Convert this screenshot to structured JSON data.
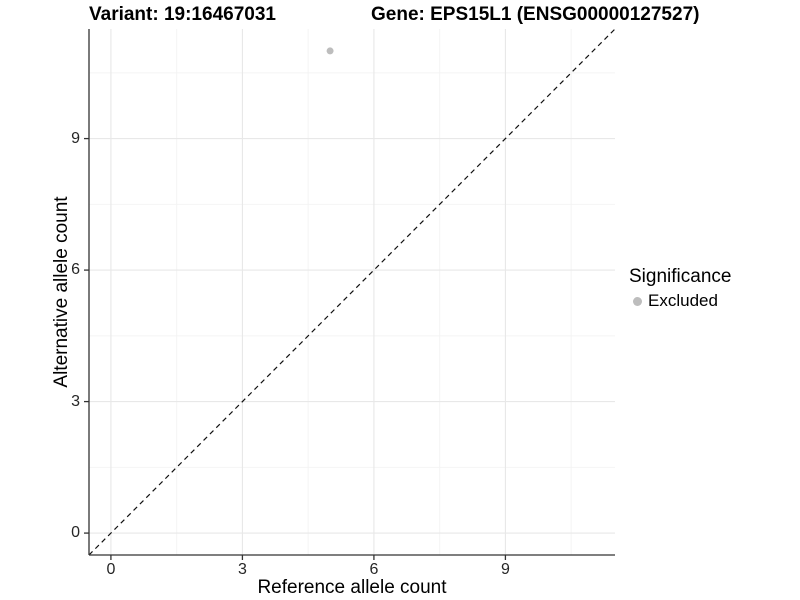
{
  "chart_data": {
    "type": "scatter",
    "title_left": "Variant: 19:16467031",
    "title_right": "Gene: EPS15L1 (ENSG00000127527)",
    "xlabel": "Reference allele count",
    "ylabel": "Alternative allele count",
    "xlim": [
      -0.5,
      11.5
    ],
    "ylim": [
      -0.5,
      11.5
    ],
    "x_major_ticks": [
      0,
      3,
      6,
      9
    ],
    "y_major_ticks": [
      0,
      3,
      6,
      9
    ],
    "x_minor_gridlines": [
      1.5,
      4.5,
      7.5,
      10.5
    ],
    "y_minor_gridlines": [
      1.5,
      4.5,
      7.5,
      10.5
    ],
    "grid": true,
    "series": [
      {
        "name": "Excluded",
        "color": "#bdbdbd",
        "points": [
          {
            "x": 5,
            "y": 11
          }
        ]
      }
    ],
    "reference_line": {
      "type": "identity",
      "style": "dashed",
      "color": "#111111",
      "from": [
        -0.5,
        -0.5
      ],
      "to": [
        11.5,
        11.5
      ]
    },
    "legend": {
      "position": "right",
      "title": "Significance",
      "items": [
        {
          "label": "Excluded",
          "color": "#bdbdbd"
        }
      ]
    },
    "colors": {
      "major_grid": "#e8e8e8",
      "minor_grid": "#f4f4f4",
      "axis_line": "#333333",
      "tick_mark": "#333333",
      "tick_label": "#262626",
      "background": "#ffffff"
    }
  }
}
